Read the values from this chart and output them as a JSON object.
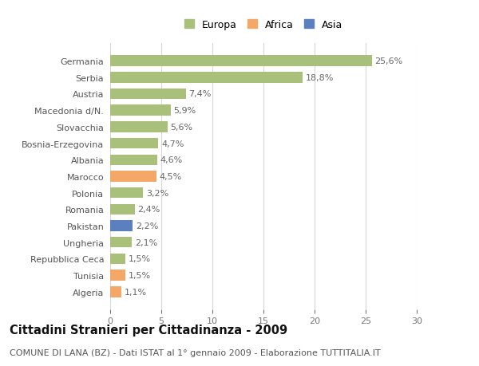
{
  "categories": [
    "Germania",
    "Serbia",
    "Austria",
    "Macedonia d/N.",
    "Slovacchia",
    "Bosnia-Erzegovina",
    "Albania",
    "Marocco",
    "Polonia",
    "Romania",
    "Pakistan",
    "Ungheria",
    "Repubblica Ceca",
    "Tunisia",
    "Algeria"
  ],
  "values": [
    25.6,
    18.8,
    7.4,
    5.9,
    5.6,
    4.7,
    4.6,
    4.5,
    3.2,
    2.4,
    2.2,
    2.1,
    1.5,
    1.5,
    1.1
  ],
  "labels": [
    "25,6%",
    "18,8%",
    "7,4%",
    "5,9%",
    "5,6%",
    "4,7%",
    "4,6%",
    "4,5%",
    "3,2%",
    "2,4%",
    "2,2%",
    "2,1%",
    "1,5%",
    "1,5%",
    "1,1%"
  ],
  "continents": [
    "Europa",
    "Europa",
    "Europa",
    "Europa",
    "Europa",
    "Europa",
    "Europa",
    "Africa",
    "Europa",
    "Europa",
    "Asia",
    "Europa",
    "Europa",
    "Africa",
    "Africa"
  ],
  "colors": {
    "Europa": "#a8c07a",
    "Africa": "#f4a868",
    "Asia": "#5b7fbf"
  },
  "xlim": [
    0,
    30
  ],
  "xticks": [
    0,
    5,
    10,
    15,
    20,
    25,
    30
  ],
  "background_color": "#ffffff",
  "grid_color": "#d8d8d8",
  "title": "Cittadini Stranieri per Cittadinanza - 2009",
  "subtitle": "COMUNE DI LANA (BZ) - Dati ISTAT al 1° gennaio 2009 - Elaborazione TUTTITALIA.IT",
  "title_fontsize": 10.5,
  "subtitle_fontsize": 8,
  "label_fontsize": 8,
  "tick_fontsize": 8,
  "legend_fontsize": 9
}
